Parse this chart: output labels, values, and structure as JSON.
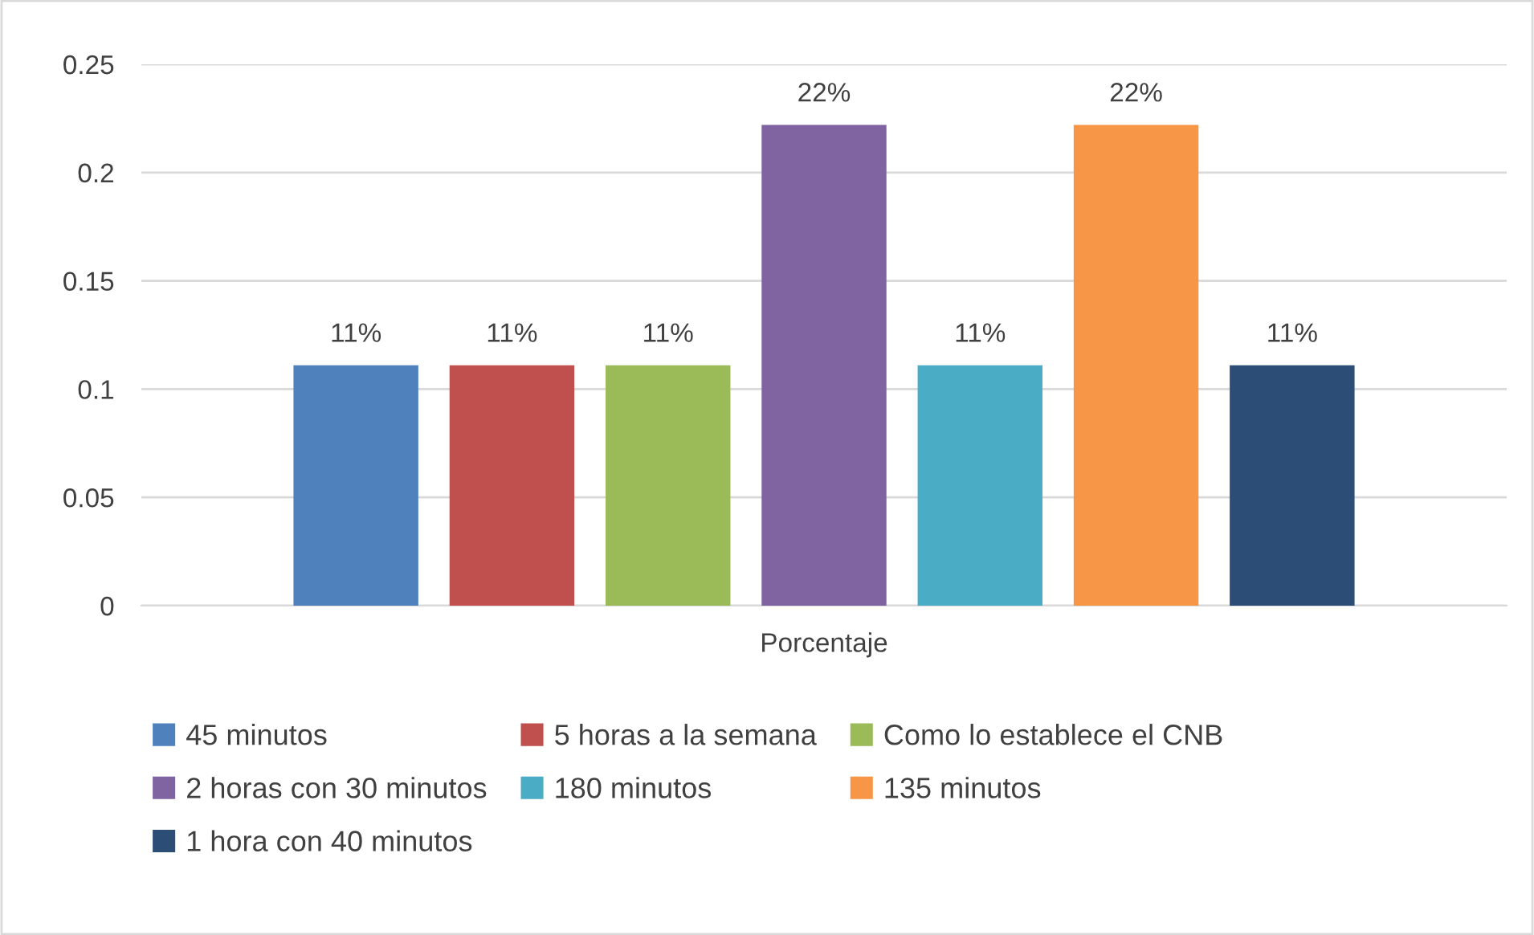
{
  "chart_data": {
    "type": "bar",
    "categories": [
      "Porcentaje"
    ],
    "series": [
      {
        "name": "45 minutos",
        "color": "#4f81bd",
        "values": [
          0.111
        ],
        "value_labels": [
          "11%"
        ]
      },
      {
        "name": "5 horas a la semana",
        "color": "#c0504d",
        "values": [
          0.111
        ],
        "value_labels": [
          "11%"
        ]
      },
      {
        "name": "Como lo establece el CNB",
        "color": "#9bbb59",
        "values": [
          0.111
        ],
        "value_labels": [
          "11%"
        ]
      },
      {
        "name": "2 horas con 30 minutos",
        "color": "#8064a2",
        "values": [
          0.222
        ],
        "value_labels": [
          "22%"
        ]
      },
      {
        "name": "180 minutos",
        "color": "#4bacc6",
        "values": [
          0.111
        ],
        "value_labels": [
          "11%"
        ]
      },
      {
        "name": "135 minutos",
        "color": "#f79646",
        "values": [
          0.222
        ],
        "value_labels": [
          "22%"
        ]
      },
      {
        "name": "1 hora con 40 minutos",
        "color": "#2c4d75",
        "values": [
          0.111
        ],
        "value_labels": [
          "11%"
        ]
      }
    ],
    "ylim": [
      0,
      0.25
    ],
    "yticks": [
      0,
      0.05,
      0.1,
      0.15,
      0.2,
      0.25
    ],
    "grid": "y",
    "legend": "bottom"
  }
}
